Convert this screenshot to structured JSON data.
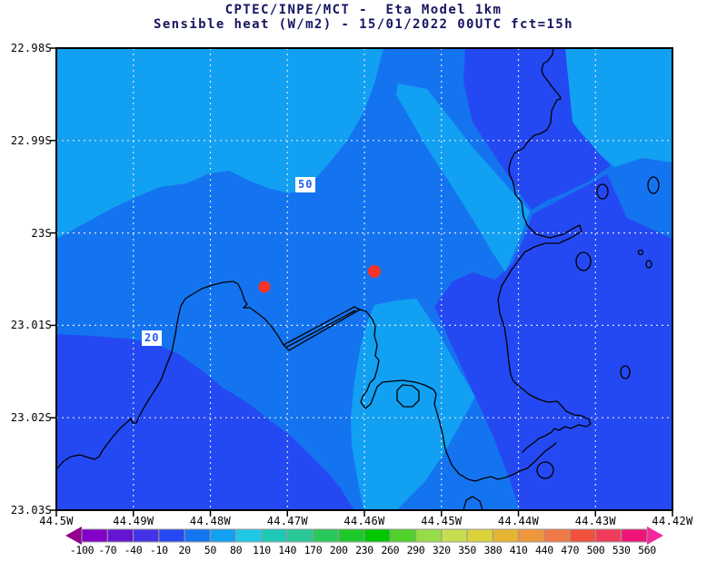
{
  "title": {
    "line1": "CPTEC/INPE/MCT -  Eta Model 1km",
    "line2": "Sensible heat (W/m2) - 15/01/2022 00UTC fct=15h"
  },
  "y_axis": {
    "labels": [
      "22.98S",
      "22.99S",
      "23S",
      "23.01S",
      "23.02S",
      "23.03S"
    ]
  },
  "x_axis": {
    "labels": [
      "44.5W",
      "44.49W",
      "44.48W",
      "44.47W",
      "44.46W",
      "44.45W",
      "44.44W",
      "44.43W",
      "44.42W"
    ]
  },
  "contour_labels": {
    "upper": "50",
    "lower": "20"
  },
  "markers": {
    "count": 2,
    "color": "#fa3228",
    "shape": "dot"
  },
  "colorbar": {
    "tick_labels": [
      "-100",
      "-70",
      "-40",
      "-10",
      "20",
      "50",
      "80",
      "110",
      "140",
      "170",
      "200",
      "230",
      "260",
      "290",
      "320",
      "350",
      "380",
      "410",
      "440",
      "470",
      "500",
      "530",
      "560"
    ],
    "segment_colors": [
      "#8200c8",
      "#6414d2",
      "#4632e6",
      "#2449f2",
      "#1474f0",
      "#12a0f2",
      "#1ec8e6",
      "#1ec8b4",
      "#28c896",
      "#28c85a",
      "#1ec828",
      "#00c800",
      "#50d228",
      "#96dc46",
      "#c8dc50",
      "#dcd23c",
      "#e6b432",
      "#f0963c",
      "#f07846",
      "#f0503c",
      "#f03c5a",
      "#f01478"
    ]
  },
  "palette": {
    "fill_low": "#2449f2",
    "fill_mid": "#1474f0",
    "fill_high": "#12a0f2",
    "coast": "#000000",
    "grid": "#efefef",
    "frame": "#000000",
    "marker": "#fa3228",
    "clabel_text": "#2060f0",
    "clabel_bg": "#ffffff",
    "cbar_left_arrow": "#930091",
    "cbar_right_arrow": "#f5289b",
    "cbar_border": "#9a9a9a",
    "title_color": "#15155f",
    "axis_color": "#000000"
  },
  "chart_data": {
    "type": "heatmap",
    "title": "CPTEC/INPE/MCT - Eta Model 1km",
    "subtitle": "Sensible heat (W/m2) - 15/01/2022 00UTC fct=15h",
    "xlabel_ticks": [
      "44.5W",
      "44.49W",
      "44.48W",
      "44.47W",
      "44.46W",
      "44.45W",
      "44.44W",
      "44.43W",
      "44.42W"
    ],
    "ylabel_ticks": [
      "22.98S",
      "22.99S",
      "23S",
      "23.01S",
      "23.02S",
      "23.03S"
    ],
    "colorbar_levels": [
      -100,
      -70,
      -40,
      -10,
      20,
      50,
      80,
      110,
      140,
      170,
      200,
      230,
      260,
      290,
      320,
      350,
      380,
      410,
      440,
      470,
      500,
      530,
      560
    ],
    "units": "W/m2",
    "visible_contour_labels": [
      50,
      20
    ],
    "visible_fill_ranges": [
      {
        "value_range": "-10 to 20",
        "color": "#2449f2",
        "where": "bottom-left region, top-center wedge, right/bottom-right region"
      },
      {
        "value_range": "20 to 50",
        "color": "#1474f0",
        "where": "large central region"
      },
      {
        "value_range": "50 to 80",
        "color": "#12a0f2",
        "where": "top-left region, top-right corner, two wedges pointing right in center"
      }
    ],
    "grid": "dotted white lat/lon graticule",
    "legend_position": "horizontal colorbar at bottom"
  }
}
